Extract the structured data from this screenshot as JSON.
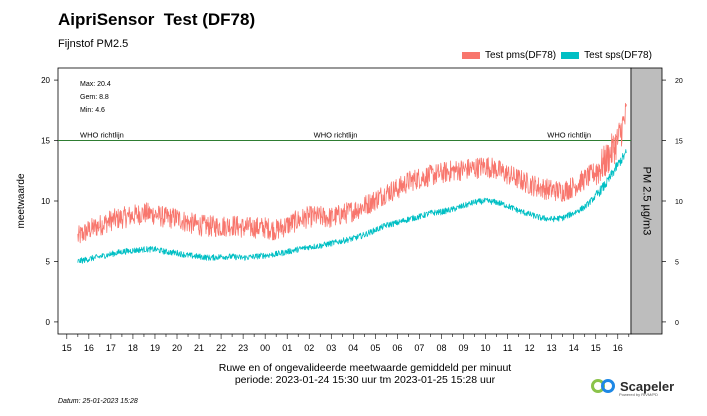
{
  "header": {
    "title": "AipriSensor  Test (DF78)",
    "subtitle": "Fijnstof PM2.5"
  },
  "legend": [
    {
      "label": "Test pms(DF78)",
      "color": "#f8766d"
    },
    {
      "label": "Test sps(DF78)",
      "color": "#00bfc4"
    }
  ],
  "footer": {
    "date": "Datum: 25-01-2023 15:28",
    "xlabel_line1": "Ruwe en of ongevalideerde meetwaarde gemiddeld per minuut",
    "xlabel_line2": "periode: 2023-01-24 15:30 uur tm 2023-01-25 15:28 uur"
  },
  "logo": {
    "name": "Scapeler",
    "tagline": "Powered by RIVM/PD"
  },
  "chart_data": {
    "type": "line",
    "ylabel": "meetwaarde",
    "right_strip_label": "PM 2.5 µg/m3",
    "x_ticks": [
      "15",
      "16",
      "17",
      "18",
      "19",
      "20",
      "21",
      "22",
      "23",
      "00",
      "01",
      "02",
      "03",
      "04",
      "05",
      "06",
      "07",
      "08",
      "09",
      "10",
      "11",
      "12",
      "13",
      "14",
      "15",
      "16"
    ],
    "x_range_hours": [
      14.6,
      40.6
    ],
    "y_ticks": [
      0,
      5,
      10,
      15,
      20
    ],
    "ylim": [
      -1,
      21
    ],
    "stats": {
      "max": "Max: 20.4",
      "gem": "Gem: 8.8",
      "min": "Min: 4.6"
    },
    "reference_line": {
      "value": 15,
      "label": "WHO richtlijn",
      "color": "#2e7d32",
      "label_positions_hours": [
        15.6,
        26.2,
        36.8
      ]
    },
    "series": [
      {
        "name": "Test pms(DF78)",
        "color": "#f8766d",
        "noise": 0.9,
        "x": [
          15.5,
          16,
          16.5,
          17,
          17.5,
          18,
          18.5,
          19,
          19.5,
          20,
          20.5,
          21,
          21.5,
          22,
          22.5,
          23,
          23.5,
          24,
          24.5,
          25,
          25.5,
          26,
          26.5,
          27,
          27.5,
          28,
          28.5,
          29,
          29.5,
          30,
          30.5,
          31,
          31.5,
          32,
          32.5,
          33,
          33.5,
          34,
          34.5,
          35,
          35.5,
          36,
          36.5,
          37,
          37.5,
          38,
          38.5,
          39,
          39.5,
          40,
          40.4
        ],
        "values": [
          7.0,
          7.6,
          8.0,
          8.4,
          8.6,
          8.8,
          9.0,
          8.9,
          8.6,
          8.6,
          8.2,
          8.0,
          7.9,
          7.9,
          8.0,
          7.8,
          7.8,
          7.8,
          7.6,
          8.0,
          8.4,
          8.7,
          8.7,
          8.6,
          8.9,
          9.2,
          9.6,
          10.1,
          10.7,
          11.0,
          11.6,
          11.9,
          12.1,
          12.3,
          12.5,
          12.6,
          12.7,
          12.9,
          12.6,
          12.2,
          11.8,
          11.4,
          11.1,
          10.9,
          10.8,
          11.2,
          11.8,
          12.4,
          13.4,
          15.0,
          17.2
        ]
      },
      {
        "name": "Test sps(DF78)",
        "color": "#00bfc4",
        "noise": 0.25,
        "x": [
          15.5,
          16,
          16.5,
          17,
          17.5,
          18,
          18.5,
          19,
          19.5,
          20,
          20.5,
          21,
          21.5,
          22,
          22.5,
          23,
          23.5,
          24,
          24.5,
          25,
          25.5,
          26,
          26.5,
          27,
          27.5,
          28,
          28.5,
          29,
          29.5,
          30,
          30.5,
          31,
          31.5,
          32,
          32.5,
          33,
          33.5,
          34,
          34.5,
          35,
          35.5,
          36,
          36.5,
          37,
          37.5,
          38,
          38.5,
          39,
          39.5,
          40,
          40.4
        ],
        "values": [
          5.0,
          5.2,
          5.4,
          5.6,
          5.8,
          5.9,
          6.0,
          6.0,
          5.8,
          5.7,
          5.5,
          5.4,
          5.3,
          5.4,
          5.4,
          5.3,
          5.4,
          5.5,
          5.6,
          5.8,
          6.0,
          6.2,
          6.3,
          6.5,
          6.7,
          6.9,
          7.2,
          7.6,
          8.0,
          8.2,
          8.5,
          8.7,
          9.0,
          9.1,
          9.3,
          9.6,
          9.9,
          10.0,
          9.9,
          9.6,
          9.2,
          8.9,
          8.6,
          8.5,
          8.6,
          9.0,
          9.5,
          10.4,
          11.5,
          13.0,
          14.0
        ]
      }
    ]
  }
}
